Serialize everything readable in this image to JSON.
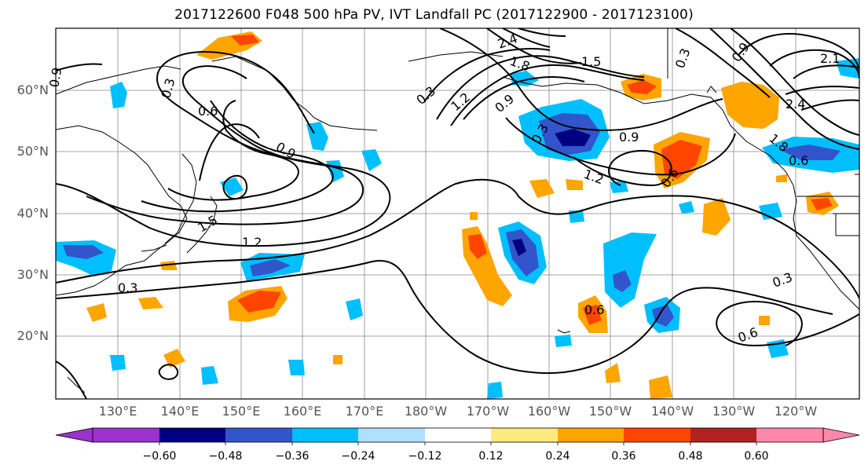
{
  "title": "2017122600 F048 500 hPa PV, IVT Landfall PC (2017122900 - 2017123100)",
  "lat_labels": [
    "60°N",
    "50°N",
    "40°N",
    "30°N",
    "20°N"
  ],
  "lon_labels": [
    "130°E",
    "140°E",
    "150°E",
    "160°E",
    "170°E",
    "180°W",
    "170°W",
    "160°W",
    "150°W",
    "140°W",
    "130°W",
    "120°W"
  ],
  "contour_labels": [
    "0.3",
    "0.6",
    "0.9",
    "1.2",
    "1.5",
    "0.3",
    "0.3",
    "1.2",
    "0.9",
    "0.9",
    "1.2",
    "0.6",
    "1.5",
    "2.4",
    "1.8",
    "0.3",
    "0.9",
    "2.1",
    "2.4",
    "1.8",
    "0.6",
    "0.3",
    "0.6",
    "0.6",
    "0.3",
    "0.9"
  ],
  "colorbar": {
    "ticks": [
      "−0.60",
      "−0.48",
      "−0.36",
      "−0.24",
      "−0.12",
      "0.12",
      "0.24",
      "0.36",
      "0.48",
      "0.60"
    ],
    "colors": [
      "#9933cc",
      "#000080",
      "#3355cc",
      "#00bfff",
      "#b0e0ff",
      "#ffffff",
      "#ffea80",
      "#ffa500",
      "#ff4500",
      "#b22222",
      "#ff88aa"
    ]
  },
  "colors": {
    "contour": "#000000",
    "grid": "#888888",
    "coast": "#000000",
    "tick_label": "#555555"
  }
}
